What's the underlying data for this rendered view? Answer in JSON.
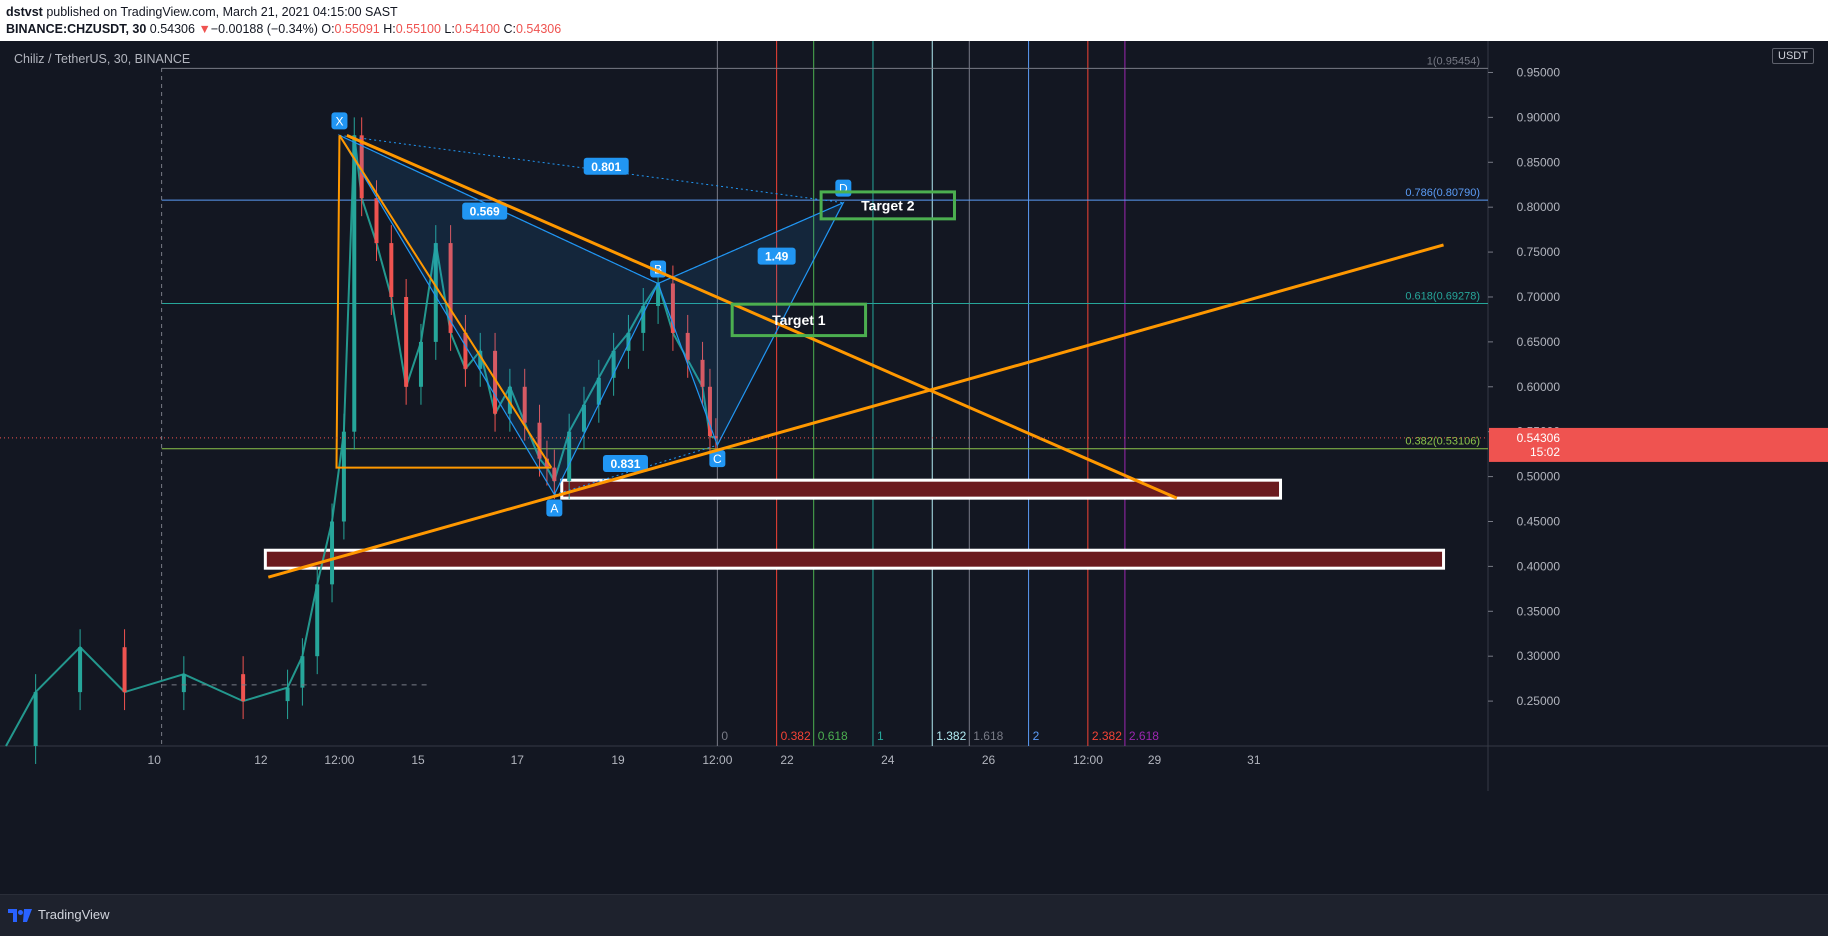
{
  "header": {
    "author": "dstvst",
    "published_text": "published on TradingView.com, March 21, 2021 04:15:00 SAST",
    "symbol": "BINANCE:CHZUSDT, 30",
    "last": "0.54306",
    "change": "−0.00188 (−0.34%)",
    "open_label": "O:",
    "open": "0.55091",
    "high_label": "H:",
    "high": "0.55100",
    "low_label": "L:",
    "low": "0.54100",
    "close_label": "C:",
    "close": "0.54306"
  },
  "chart_title": "Chiliz / TetherUS, 30, BINANCE",
  "currency_button": "USDT",
  "footer": {
    "logo_text": "TradingView"
  },
  "colors": {
    "background": "#131722",
    "orange": "#ff9800",
    "pattern_blue": "#2196f3",
    "target_green": "#4caf50",
    "zone_fill": "#6b1a1e",
    "price_red": "#ef5350"
  },
  "chart_data": {
    "type": "candlestick",
    "title": "Chiliz / TetherUS, 30, BINANCE",
    "ylim": [
      0.2,
      0.965
    ],
    "y_ticks": [
      "0.95000",
      "0.90000",
      "0.85000",
      "0.80000",
      "0.75000",
      "0.70000",
      "0.65000",
      "0.60000",
      "0.55000",
      "0.50000",
      "0.45000",
      "0.40000",
      "0.35000",
      "0.30000",
      "0.25000"
    ],
    "x_ticks": [
      "10",
      "12",
      "12:00",
      "15",
      "17",
      "19",
      "12:00",
      "22",
      "24",
      "26",
      "12:00",
      "29",
      "31"
    ],
    "price_series": [
      [
        0,
        0.2
      ],
      [
        2,
        0.26
      ],
      [
        5,
        0.31
      ],
      [
        8,
        0.26
      ],
      [
        12,
        0.28
      ],
      [
        16,
        0.25
      ],
      [
        19,
        0.265
      ],
      [
        20,
        0.3
      ],
      [
        21,
        0.38
      ],
      [
        22,
        0.45
      ],
      [
        22.8,
        0.55
      ],
      [
        23.5,
        0.88
      ],
      [
        24,
        0.81
      ],
      [
        25,
        0.76
      ],
      [
        26,
        0.7
      ],
      [
        27,
        0.6
      ],
      [
        28,
        0.65
      ],
      [
        29,
        0.76
      ],
      [
        30,
        0.66
      ],
      [
        31,
        0.62
      ],
      [
        32,
        0.64
      ],
      [
        33,
        0.57
      ],
      [
        34,
        0.6
      ],
      [
        35,
        0.56
      ],
      [
        36,
        0.52
      ],
      [
        36.5,
        0.51
      ],
      [
        37,
        0.495
      ],
      [
        38,
        0.55
      ],
      [
        39,
        0.58
      ],
      [
        40,
        0.61
      ],
      [
        41,
        0.64
      ],
      [
        42,
        0.66
      ],
      [
        43,
        0.69
      ],
      [
        44,
        0.715
      ],
      [
        45,
        0.66
      ],
      [
        46,
        0.63
      ],
      [
        47,
        0.6
      ],
      [
        47.5,
        0.545
      ],
      [
        47.9,
        0.543
      ]
    ],
    "current_price": {
      "value": 0.54306,
      "label": "0.54306",
      "countdown": "15:02"
    },
    "fib_levels": [
      {
        "label": "1(0.95454)",
        "value": 0.95454
      },
      {
        "label": "0.786(0.80790)",
        "value": 0.8079
      },
      {
        "label": "0.618(0.69278)",
        "value": 0.69278
      },
      {
        "label": "0.382(0.53106)",
        "value": 0.53106
      }
    ],
    "harmonic_pattern": {
      "points": [
        {
          "label": "X",
          "x": 22.5,
          "y": 0.88
        },
        {
          "label": "A",
          "x": 37,
          "y": 0.48
        },
        {
          "label": "B",
          "x": 44,
          "y": 0.715
        },
        {
          "label": "C",
          "x": 48,
          "y": 0.535
        },
        {
          "label": "D",
          "x": 56.5,
          "y": 0.805
        }
      ],
      "ratios": [
        {
          "label": "0.801",
          "x": 40.5,
          "y": 0.845
        },
        {
          "label": "0.569",
          "x": 32.3,
          "y": 0.795
        },
        {
          "label": "1.49",
          "x": 52,
          "y": 0.745
        },
        {
          "label": "0.831",
          "x": 41.8,
          "y": 0.514
        }
      ]
    },
    "targets": [
      {
        "label": "Target 2",
        "x0": 55,
        "x1": 64,
        "y0": 0.787,
        "y1": 0.817
      },
      {
        "label": "Target 1",
        "x0": 49,
        "x1": 58,
        "y0": 0.657,
        "y1": 0.692
      }
    ],
    "support_zones": [
      {
        "x0": 37.5,
        "x1": 86,
        "y0": 0.476,
        "y1": 0.496
      },
      {
        "x0": 17.5,
        "x1": 97,
        "y0": 0.398,
        "y1": 0.418
      }
    ],
    "trendlines": [
      {
        "x0": 23,
        "y0": 0.88,
        "x1": 79,
        "y1": 0.476
      },
      {
        "x0": 17.7,
        "y0": 0.388,
        "x1": 97,
        "y1": 0.758
      }
    ],
    "fib_time_zones": [
      {
        "label": "0",
        "x": 48
      },
      {
        "label": "0.382",
        "x": 52
      },
      {
        "label": "0.618",
        "x": 54.5
      },
      {
        "label": "1",
        "x": 58.5
      },
      {
        "label": "1.382",
        "x": 62.5
      },
      {
        "label": "1.618",
        "x": 65
      },
      {
        "label": "2",
        "x": 69
      },
      {
        "label": "2.382",
        "x": 73
      },
      {
        "label": "2.618",
        "x": 75.5
      }
    ]
  }
}
